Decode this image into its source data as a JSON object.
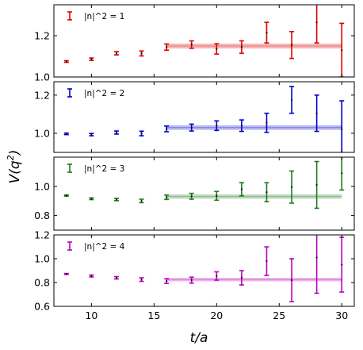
{
  "chart_data": {
    "type": "scatter",
    "xlabel": "t/a",
    "ylabel": "V(q^2)",
    "xlim": [
      7,
      31
    ],
    "xticks": [
      10,
      15,
      20,
      25,
      30
    ],
    "fit_range": [
      16,
      30
    ],
    "grid": false,
    "legend_position": "top-left",
    "panels": [
      {
        "legend": "|n|^2 = 1",
        "color": "#dd0000",
        "ylim": [
          1.0,
          1.35
        ],
        "yticks": [
          1.0,
          1.2
        ],
        "fit": {
          "center": 1.15,
          "band": 0.012
        },
        "points": [
          {
            "x": 8,
            "y": 1.075,
            "err": 0.004
          },
          {
            "x": 10,
            "y": 1.086,
            "err": 0.006
          },
          {
            "x": 12,
            "y": 1.115,
            "err": 0.008
          },
          {
            "x": 14,
            "y": 1.114,
            "err": 0.012
          },
          {
            "x": 16,
            "y": 1.145,
            "err": 0.015
          },
          {
            "x": 18,
            "y": 1.157,
            "err": 0.018
          },
          {
            "x": 20,
            "y": 1.136,
            "err": 0.025
          },
          {
            "x": 22,
            "y": 1.145,
            "err": 0.03
          },
          {
            "x": 24,
            "y": 1.215,
            "err": 0.05
          },
          {
            "x": 26,
            "y": 1.155,
            "err": 0.065
          },
          {
            "x": 28,
            "y": 1.265,
            "err": 0.1
          },
          {
            "x": 30,
            "y": 1.13,
            "err": 0.13
          }
        ]
      },
      {
        "legend": "|n|^2 = 2",
        "color": "#0000cc",
        "ylim": [
          0.9,
          1.27
        ],
        "yticks": [
          1.0,
          1.2
        ],
        "fit": {
          "center": 1.03,
          "band": 0.012
        },
        "points": [
          {
            "x": 8,
            "y": 0.997,
            "err": 0.004
          },
          {
            "x": 10,
            "y": 0.993,
            "err": 0.006
          },
          {
            "x": 12,
            "y": 1.004,
            "err": 0.008
          },
          {
            "x": 14,
            "y": 0.999,
            "err": 0.012
          },
          {
            "x": 16,
            "y": 1.023,
            "err": 0.015
          },
          {
            "x": 18,
            "y": 1.03,
            "err": 0.018
          },
          {
            "x": 20,
            "y": 1.04,
            "err": 0.025
          },
          {
            "x": 22,
            "y": 1.04,
            "err": 0.03
          },
          {
            "x": 24,
            "y": 1.055,
            "err": 0.05
          },
          {
            "x": 26,
            "y": 1.175,
            "err": 0.07
          },
          {
            "x": 28,
            "y": 1.105,
            "err": 0.095
          },
          {
            "x": 30,
            "y": 1.02,
            "err": 0.15
          }
        ]
      },
      {
        "legend": "|n|^2 = 3",
        "color": "#1f7a1f",
        "ylim": [
          0.7,
          1.2
        ],
        "yticks": [
          0.8,
          1.0
        ],
        "fit": {
          "center": 0.93,
          "band": 0.015
        },
        "points": [
          {
            "x": 8,
            "y": 0.937,
            "err": 0.004
          },
          {
            "x": 10,
            "y": 0.915,
            "err": 0.006
          },
          {
            "x": 12,
            "y": 0.91,
            "err": 0.008
          },
          {
            "x": 14,
            "y": 0.9,
            "err": 0.012
          },
          {
            "x": 16,
            "y": 0.925,
            "err": 0.015
          },
          {
            "x": 18,
            "y": 0.932,
            "err": 0.02
          },
          {
            "x": 20,
            "y": 0.935,
            "err": 0.03
          },
          {
            "x": 22,
            "y": 0.98,
            "err": 0.045
          },
          {
            "x": 24,
            "y": 0.96,
            "err": 0.065
          },
          {
            "x": 26,
            "y": 0.995,
            "err": 0.11
          },
          {
            "x": 28,
            "y": 1.01,
            "err": 0.16
          },
          {
            "x": 30,
            "y": 1.09,
            "err": 0.115
          }
        ]
      },
      {
        "legend": "|n|^2 = 4",
        "color": "#bb00bb",
        "ylim": [
          0.6,
          1.2
        ],
        "yticks": [
          0.6,
          0.8,
          1.0,
          1.2
        ],
        "fit": {
          "center": 0.825,
          "band": 0.015
        },
        "points": [
          {
            "x": 8,
            "y": 0.872,
            "err": 0.004
          },
          {
            "x": 10,
            "y": 0.855,
            "err": 0.008
          },
          {
            "x": 12,
            "y": 0.84,
            "err": 0.01
          },
          {
            "x": 14,
            "y": 0.825,
            "err": 0.015
          },
          {
            "x": 16,
            "y": 0.812,
            "err": 0.02
          },
          {
            "x": 18,
            "y": 0.82,
            "err": 0.025
          },
          {
            "x": 20,
            "y": 0.855,
            "err": 0.035
          },
          {
            "x": 22,
            "y": 0.84,
            "err": 0.06
          },
          {
            "x": 24,
            "y": 0.98,
            "err": 0.12
          },
          {
            "x": 26,
            "y": 0.82,
            "err": 0.18
          },
          {
            "x": 28,
            "y": 1.01,
            "err": 0.3
          },
          {
            "x": 30,
            "y": 0.95,
            "err": 0.23
          }
        ]
      }
    ]
  }
}
